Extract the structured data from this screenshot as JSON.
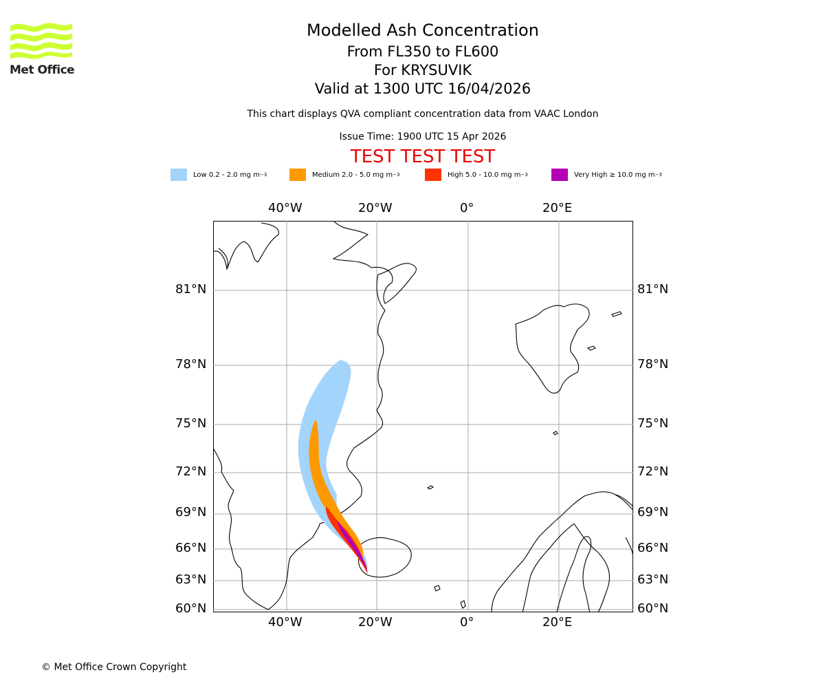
{
  "logo": {
    "text": "Met Office",
    "color": "#ccff33"
  },
  "title": {
    "line1": "Modelled Ash Concentration",
    "line2": "From FL350 to FL600",
    "line3": "For KRYSUVIK",
    "line4": "Valid at 1300 UTC 16/04/2026"
  },
  "subtitle": "This chart displays QVA compliant concentration data from VAAC London",
  "issue_time": "Issue Time: 1900 UTC 15 Apr 2026",
  "test_banner": "TEST TEST TEST",
  "legend": [
    {
      "label": "Low 0.2 - 2.0 mg m",
      "color": "#a3d4fc"
    },
    {
      "label": "Medium 2.0 - 5.0 mg m",
      "color": "#ff9900"
    },
    {
      "label": "High 5.0 - 10.0 mg m",
      "color": "#ff3300"
    },
    {
      "label": "Very High  ≥  10.0 mg m",
      "color": "#b300b3"
    }
  ],
  "legend_unit_exp": "−3",
  "map": {
    "lon_labels": [
      "40°W",
      "20°W",
      "0°",
      "20°E"
    ],
    "lat_labels": [
      "81°N",
      "78°N",
      "75°N",
      "72°N",
      "69°N",
      "66°N",
      "63°N",
      "60°N"
    ],
    "lon_ticks": [
      -40,
      -20,
      0,
      20
    ],
    "lat_ticks": [
      81,
      78,
      75,
      72,
      69,
      66,
      63,
      60
    ]
  },
  "copyright": "© Met Office Crown Copyright"
}
